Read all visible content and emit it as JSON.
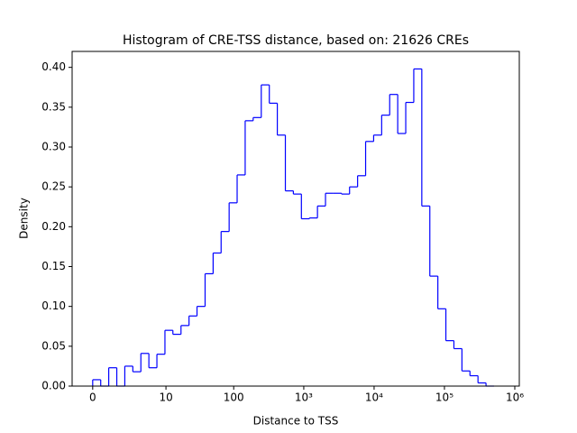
{
  "chart_data": {
    "type": "histogram",
    "title": "Histogram of CRE-TSS distance, based on: 21626 CREs",
    "x_label": "Distance to TSS",
    "y_label": "Density",
    "x_scale": "log1p",
    "color": "#0000ff",
    "histtype": "step",
    "bins": [
      0,
      0.3,
      0.69,
      1.2,
      1.86,
      2.72,
      3.84,
      5.29,
      7.18,
      9.64,
      12.8,
      17.0,
      22.4,
      29.4,
      38.6,
      50.5,
      65.9,
      86,
      112,
      146,
      190,
      248,
      323,
      420,
      547,
      711,
      925,
      1204,
      1566,
      2037,
      2649,
      3444,
      4479,
      5826,
      7576,
      9851,
      12810,
      16660,
      21670,
      28180,
      36640,
      47650,
      61970,
      80590,
      104800,
      136300,
      177300,
      230500,
      299800,
      389900,
      507000
    ],
    "values": [
      0.008,
      0,
      0.023,
      0,
      0.025,
      0.018,
      0.041,
      0.023,
      0.04,
      0.07,
      0.065,
      0.076,
      0.088,
      0.1,
      0.141,
      0.167,
      0.194,
      0.23,
      0.265,
      0.333,
      0.337,
      0.378,
      0.355,
      0.315,
      0.245,
      0.241,
      0.21,
      0.211,
      0.226,
      0.242,
      0.242,
      0.241,
      0.25,
      0.264,
      0.307,
      0.315,
      0.34,
      0.366,
      0.317,
      0.356,
      0.398,
      0.226,
      0.138,
      0.097,
      0.057,
      0.047,
      0.019,
      0.013,
      0.004,
      0
    ],
    "xlim": [
      -0.49,
      1159000
    ],
    "xticks": [
      0,
      10,
      100,
      {
        "value": 1000,
        "label": "10³"
      },
      {
        "value": 10000,
        "label": "10⁴"
      },
      {
        "value": 100000,
        "label": "10⁵"
      },
      {
        "value": 1000000,
        "label": "10⁶"
      }
    ],
    "ylim": [
      0,
      0.42
    ],
    "yticks": [
      {
        "value": 0,
        "label": "0.00"
      },
      0.05,
      {
        "value": 0.1,
        "label": "0.10"
      },
      0.15,
      {
        "value": 0.2,
        "label": "0.20"
      },
      0.25,
      {
        "value": 0.3,
        "label": "0.30"
      },
      0.35,
      {
        "value": 0.4,
        "label": "0.40"
      }
    ]
  }
}
